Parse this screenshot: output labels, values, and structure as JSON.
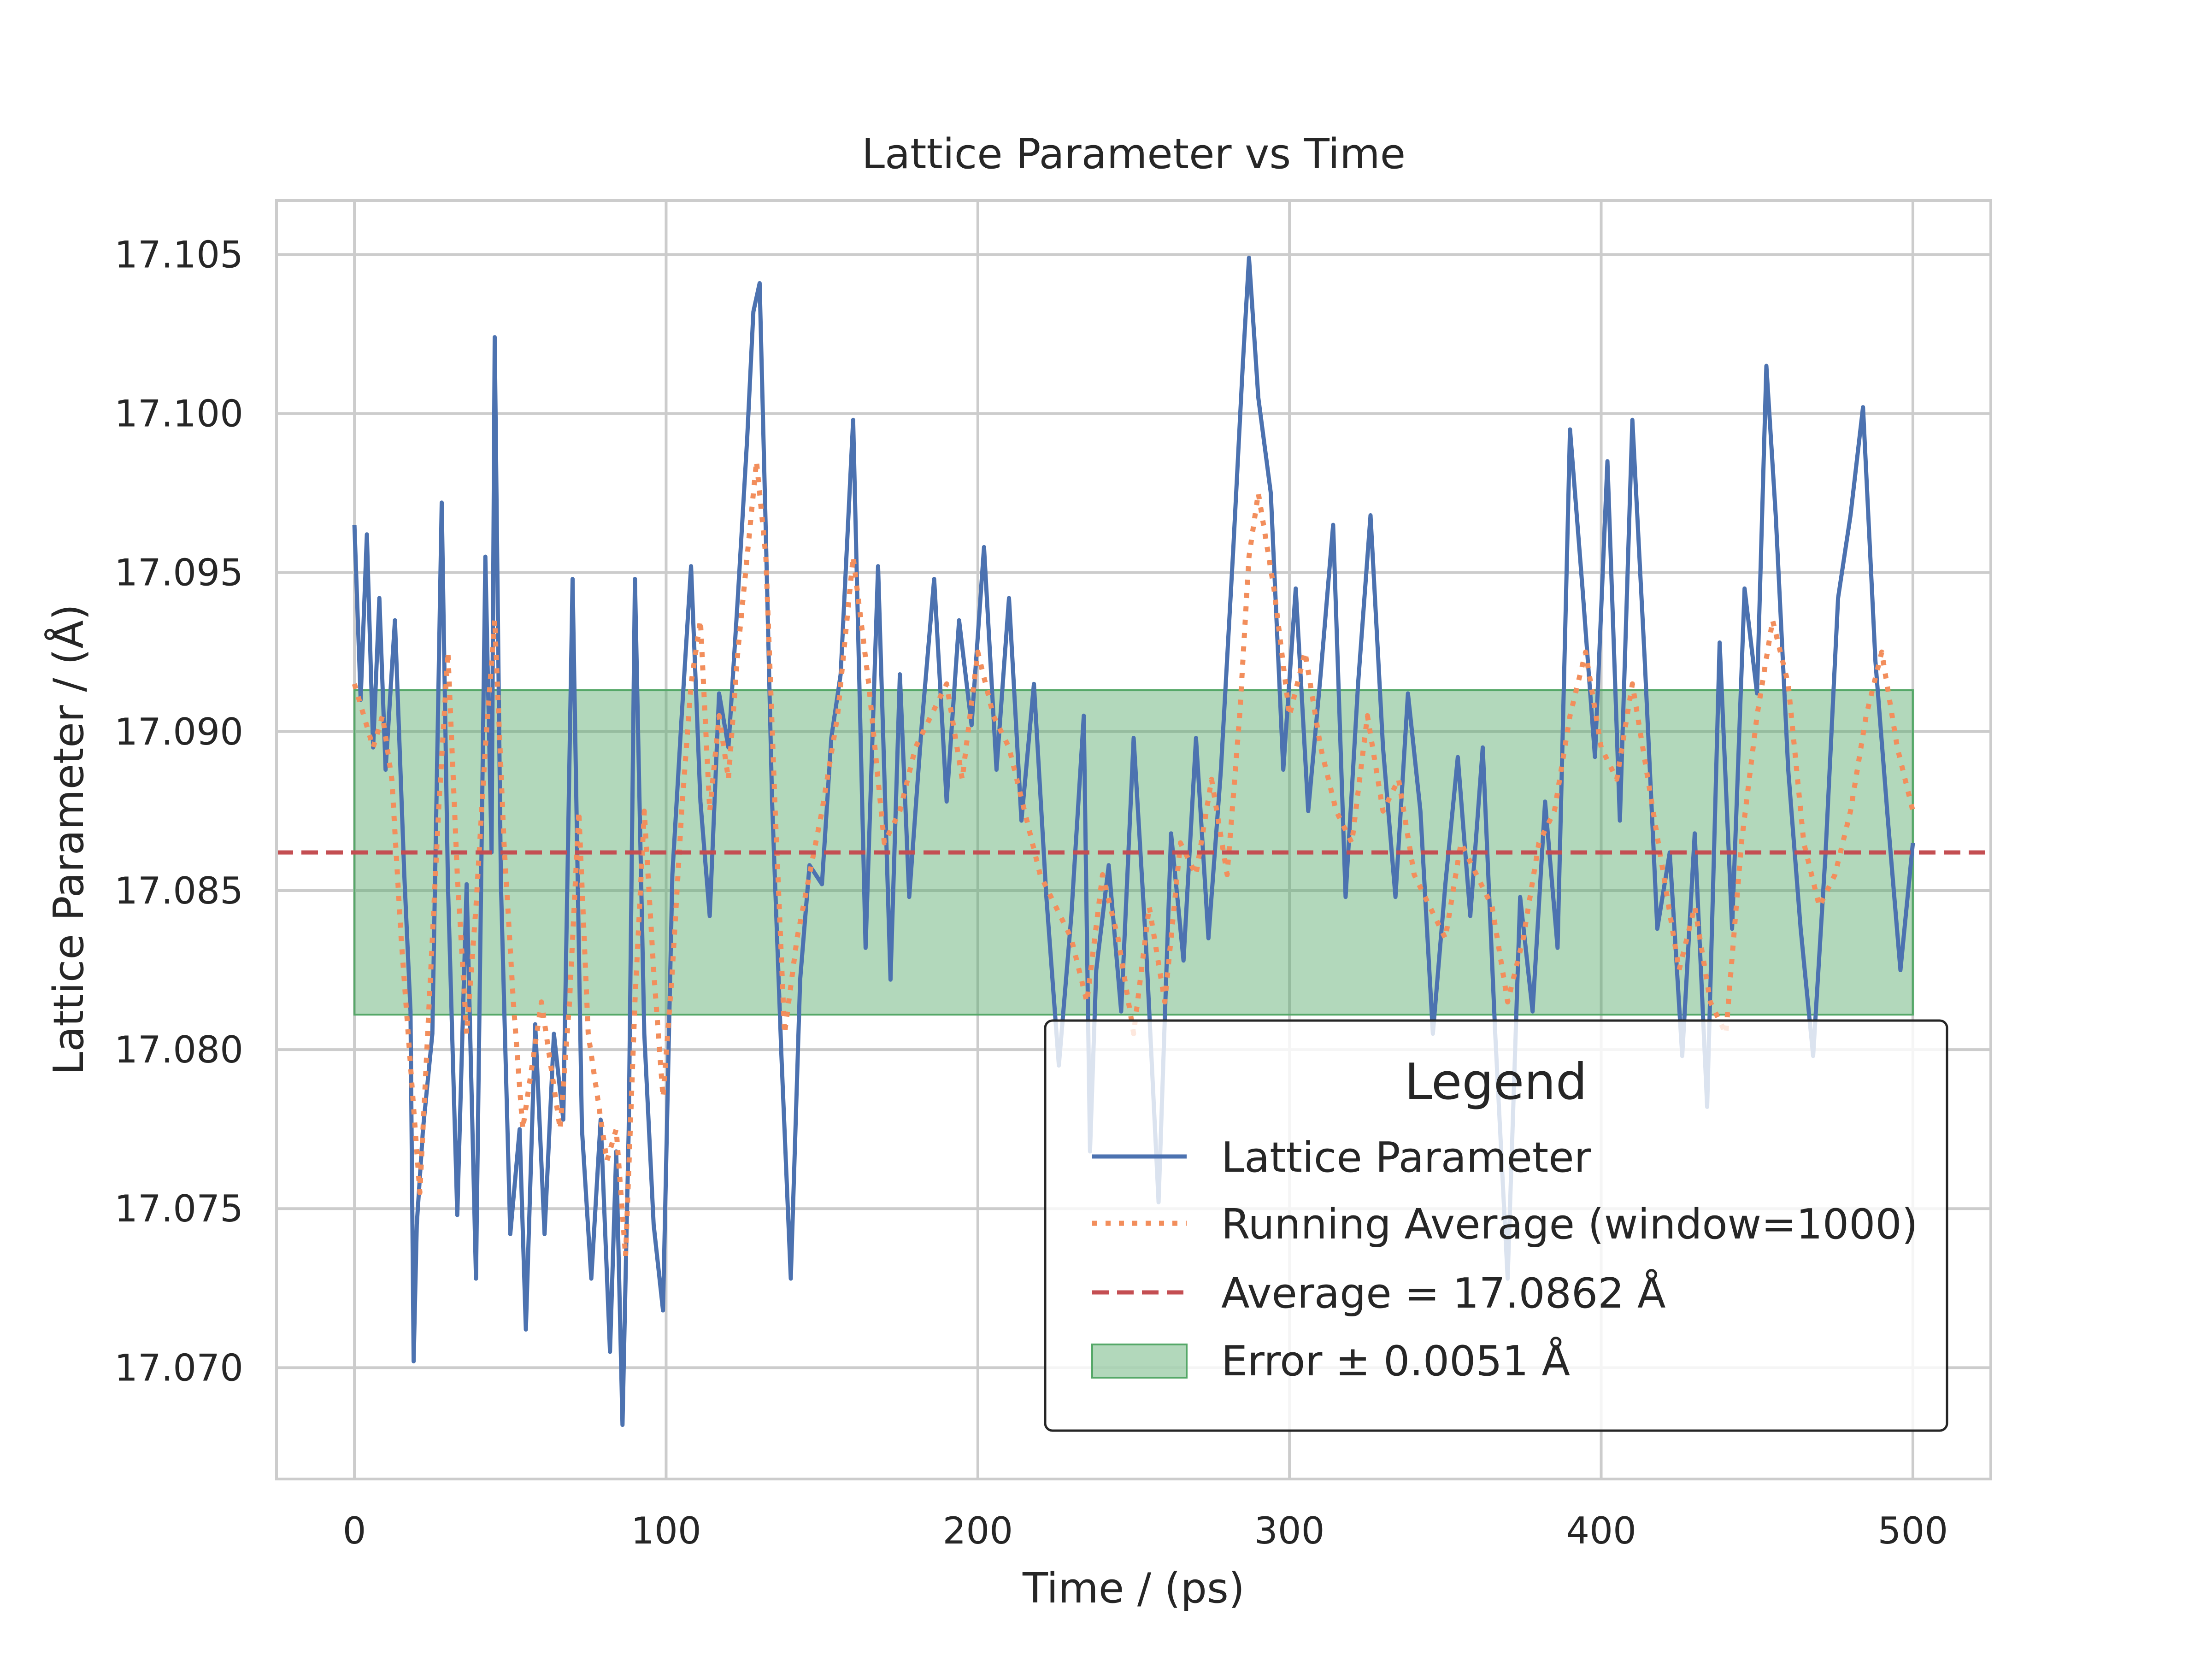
{
  "chart_data": {
    "type": "line",
    "title": "Lattice Parameter vs Time",
    "xlabel": "Time / (ps)",
    "ylabel": "Lattice Parameter  / (Å)",
    "xlim": [
      -25,
      525
    ],
    "ylim": [
      17.0665,
      17.1067
    ],
    "xticks": [
      0,
      100,
      200,
      300,
      400,
      500
    ],
    "xtick_labels": [
      "0",
      "100",
      "200",
      "300",
      "400",
      "500"
    ],
    "yticks": [
      17.07,
      17.075,
      17.08,
      17.085,
      17.09,
      17.095,
      17.1,
      17.105
    ],
    "ytick_labels": [
      "17.070",
      "17.075",
      "17.080",
      "17.085",
      "17.090",
      "17.095",
      "17.100",
      "17.105"
    ],
    "grid": true,
    "legend": {
      "title": "Legend",
      "position": "lower-right"
    },
    "average": 17.0862,
    "error": 0.0051,
    "band": [
      17.0811,
      17.0913
    ],
    "band_x": [
      0,
      500
    ],
    "series": [
      {
        "name": "Lattice Parameter",
        "style": "solid",
        "color": "#4c72b0",
        "x": [
          0,
          2,
          4,
          6,
          8,
          10,
          13,
          16,
          18,
          19,
          20,
          22,
          25,
          28,
          30,
          33,
          36,
          39,
          42,
          44,
          45,
          47,
          50,
          53,
          55,
          58,
          61,
          64,
          67,
          70,
          73,
          76,
          79,
          82,
          84,
          86,
          88,
          90,
          93,
          96,
          99,
          102,
          105,
          108,
          111,
          114,
          117,
          120,
          123,
          126,
          128,
          130,
          132,
          134,
          137,
          140,
          143,
          146,
          150,
          153,
          156,
          160,
          164,
          168,
          172,
          175,
          178,
          182,
          186,
          190,
          194,
          198,
          202,
          206,
          210,
          214,
          218,
          222,
          226,
          230,
          234,
          236,
          238,
          242,
          246,
          250,
          254,
          258,
          262,
          266,
          270,
          274,
          278,
          282,
          285,
          287,
          290,
          294,
          298,
          302,
          306,
          310,
          314,
          318,
          322,
          326,
          330,
          334,
          338,
          342,
          346,
          350,
          354,
          358,
          362,
          366,
          370,
          374,
          378,
          382,
          386,
          390,
          394,
          398,
          402,
          406,
          410,
          414,
          418,
          422,
          426,
          430,
          434,
          438,
          442,
          446,
          450,
          453,
          456,
          460,
          464,
          468,
          472,
          476,
          480,
          484,
          488,
          492,
          496,
          500
        ],
        "y": [
          17.0965,
          17.091,
          17.0962,
          17.0895,
          17.0942,
          17.0888,
          17.0935,
          17.0855,
          17.0812,
          17.0702,
          17.0745,
          17.0775,
          17.0805,
          17.0972,
          17.0852,
          17.0748,
          17.0852,
          17.0728,
          17.0955,
          17.0862,
          17.1024,
          17.0852,
          17.0742,
          17.0775,
          17.0712,
          17.0808,
          17.0742,
          17.0805,
          17.0778,
          17.0948,
          17.0775,
          17.0728,
          17.0778,
          17.0705,
          17.0768,
          17.0682,
          17.0775,
          17.0948,
          17.0805,
          17.0745,
          17.0718,
          17.0855,
          17.0905,
          17.0952,
          17.0878,
          17.0842,
          17.0912,
          17.0895,
          17.0942,
          17.0992,
          17.1032,
          17.1041,
          17.0962,
          17.0878,
          17.0798,
          17.0728,
          17.0822,
          17.0858,
          17.0852,
          17.0898,
          17.0918,
          17.0998,
          17.0832,
          17.0952,
          17.0822,
          17.0918,
          17.0848,
          17.0902,
          17.0948,
          17.0878,
          17.0935,
          17.0902,
          17.0958,
          17.0888,
          17.0942,
          17.0872,
          17.0915,
          17.0848,
          17.0795,
          17.0842,
          17.0905,
          17.0768,
          17.0825,
          17.0858,
          17.0812,
          17.0898,
          17.0832,
          17.0752,
          17.0868,
          17.0828,
          17.0898,
          17.0835,
          17.0888,
          17.0958,
          17.1015,
          17.1049,
          17.1005,
          17.0975,
          17.0888,
          17.0945,
          17.0875,
          17.0918,
          17.0965,
          17.0848,
          17.0915,
          17.0968,
          17.0895,
          17.0848,
          17.0912,
          17.0875,
          17.0805,
          17.0852,
          17.0892,
          17.0842,
          17.0895,
          17.0805,
          17.0728,
          17.0848,
          17.0812,
          17.0878,
          17.0832,
          17.0995,
          17.0945,
          17.0892,
          17.0985,
          17.0872,
          17.0998,
          17.0922,
          17.0838,
          17.0862,
          17.0798,
          17.0868,
          17.0782,
          17.0928,
          17.0838,
          17.0945,
          17.0912,
          17.1015,
          17.0968,
          17.0888,
          17.0838,
          17.0798,
          17.0862,
          17.0942,
          17.0968,
          17.1002,
          17.0922,
          17.0872,
          17.0825,
          17.0865
        ]
      },
      {
        "name": "Running Average (window=1000)",
        "style": "dotted",
        "color": "#f28e5c",
        "x": [
          0,
          3,
          6,
          9,
          12,
          15,
          18,
          21,
          24,
          27,
          30,
          33,
          36,
          39,
          42,
          45,
          48,
          51,
          54,
          57,
          60,
          63,
          66,
          69,
          72,
          75,
          78,
          81,
          84,
          87,
          90,
          93,
          96,
          99,
          102,
          105,
          108,
          111,
          114,
          117,
          120,
          123,
          126,
          129,
          132,
          135,
          138,
          142,
          146,
          150,
          155,
          160,
          165,
          170,
          175,
          180,
          185,
          190,
          195,
          200,
          205,
          210,
          215,
          220,
          225,
          230,
          235,
          240,
          245,
          250,
          255,
          260,
          265,
          270,
          275,
          280,
          284,
          287,
          290,
          295,
          300,
          305,
          310,
          315,
          320,
          325,
          330,
          335,
          340,
          345,
          350,
          355,
          360,
          365,
          370,
          375,
          380,
          385,
          390,
          395,
          400,
          405,
          410,
          415,
          420,
          425,
          430,
          435,
          440,
          445,
          450,
          455,
          460,
          465,
          470,
          475,
          480,
          485,
          490,
          495,
          500
        ],
        "y": [
          17.0915,
          17.0905,
          17.0895,
          17.0905,
          17.0885,
          17.0835,
          17.0795,
          17.0755,
          17.0815,
          17.0875,
          17.0925,
          17.0855,
          17.0805,
          17.0845,
          17.0895,
          17.0935,
          17.0865,
          17.0815,
          17.0775,
          17.0795,
          17.0815,
          17.0795,
          17.0775,
          17.0815,
          17.0875,
          17.0805,
          17.0785,
          17.0765,
          17.0775,
          17.0735,
          17.0815,
          17.0875,
          17.0825,
          17.0785,
          17.0825,
          17.0875,
          17.0915,
          17.0935,
          17.0875,
          17.0905,
          17.0885,
          17.0925,
          17.0955,
          17.0985,
          17.0955,
          17.0875,
          17.0805,
          17.0835,
          17.0855,
          17.0875,
          17.0905,
          17.0955,
          17.0915,
          17.0865,
          17.0875,
          17.0895,
          17.0905,
          17.0915,
          17.0885,
          17.0925,
          17.0905,
          17.0895,
          17.0875,
          17.0855,
          17.0845,
          17.0835,
          17.0815,
          17.0855,
          17.0835,
          17.0805,
          17.0845,
          17.0815,
          17.0865,
          17.0855,
          17.0885,
          17.0855,
          17.0905,
          17.0955,
          17.0975,
          17.0945,
          17.0905,
          17.0925,
          17.0895,
          17.0875,
          17.0865,
          17.0905,
          17.0875,
          17.0885,
          17.0855,
          17.0845,
          17.0835,
          17.0865,
          17.0855,
          17.0845,
          17.0815,
          17.0835,
          17.0865,
          17.0875,
          17.0905,
          17.0925,
          17.0895,
          17.0885,
          17.0915,
          17.0885,
          17.0855,
          17.0825,
          17.0845,
          17.0815,
          17.0805,
          17.0865,
          17.0905,
          17.0935,
          17.0915,
          17.0865,
          17.0845,
          17.0855,
          17.0875,
          17.0905,
          17.0925,
          17.0895,
          17.0875
        ]
      },
      {
        "name": "Average = 17.0862 Å",
        "style": "dashed",
        "color": "#c44e52"
      },
      {
        "name": "Error ± 0.0051 Å",
        "style": "band",
        "color": "#55a868"
      }
    ]
  }
}
